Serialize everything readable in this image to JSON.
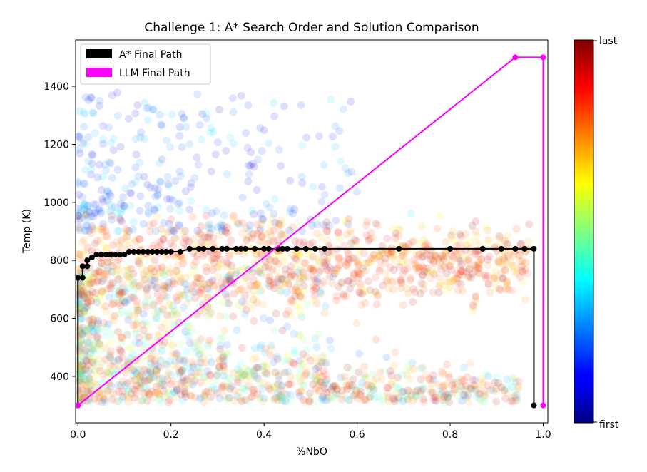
{
  "chart_data": {
    "type": "scatter",
    "title": "Challenge 1: A* Search Order and Solution Comparison",
    "xlabel": "%NbO",
    "ylabel": "Temp (K)",
    "xlim": [
      -0.005,
      1.01
    ],
    "ylim": [
      240,
      1560
    ],
    "xticks": [
      0.0,
      0.2,
      0.4,
      0.6,
      0.8,
      1.0
    ],
    "xtick_labels": [
      "0.0",
      "0.2",
      "0.4",
      "0.6",
      "0.8",
      "1.0"
    ],
    "yticks": [
      400,
      600,
      800,
      1000,
      1200,
      1400
    ],
    "ytick_labels": [
      "400",
      "600",
      "800",
      "1000",
      "1200",
      "1400"
    ],
    "colorbar": {
      "colormap": "jet",
      "label_top": "last",
      "label_bottom": "first"
    },
    "legend": {
      "placement": "top-left",
      "entries": [
        {
          "label": "A* Final Path",
          "color": "#000000"
        },
        {
          "label": "LLM Final Path",
          "color": "#ff00ff"
        }
      ]
    },
    "series": [
      {
        "name": "A* Final Path",
        "color": "#000000",
        "points": [
          [
            0.0,
            300
          ],
          [
            0.0,
            740
          ],
          [
            0.01,
            740
          ],
          [
            0.01,
            780
          ],
          [
            0.02,
            780
          ],
          [
            0.02,
            800
          ],
          [
            0.03,
            810
          ],
          [
            0.04,
            820
          ],
          [
            0.05,
            820
          ],
          [
            0.06,
            820
          ],
          [
            0.07,
            820
          ],
          [
            0.08,
            820
          ],
          [
            0.09,
            820
          ],
          [
            0.1,
            820
          ],
          [
            0.11,
            830
          ],
          [
            0.12,
            830
          ],
          [
            0.13,
            830
          ],
          [
            0.14,
            830
          ],
          [
            0.15,
            830
          ],
          [
            0.16,
            830
          ],
          [
            0.17,
            830
          ],
          [
            0.18,
            830
          ],
          [
            0.19,
            830
          ],
          [
            0.2,
            830
          ],
          [
            0.22,
            830
          ],
          [
            0.24,
            840
          ],
          [
            0.26,
            840
          ],
          [
            0.27,
            840
          ],
          [
            0.29,
            840
          ],
          [
            0.31,
            840
          ],
          [
            0.32,
            840
          ],
          [
            0.34,
            840
          ],
          [
            0.35,
            840
          ],
          [
            0.36,
            840
          ],
          [
            0.38,
            840
          ],
          [
            0.4,
            840
          ],
          [
            0.41,
            840
          ],
          [
            0.43,
            840
          ],
          [
            0.44,
            840
          ],
          [
            0.45,
            840
          ],
          [
            0.47,
            840
          ],
          [
            0.49,
            840
          ],
          [
            0.51,
            840
          ],
          [
            0.53,
            840
          ],
          [
            0.69,
            840
          ],
          [
            0.8,
            840
          ],
          [
            0.87,
            840
          ],
          [
            0.91,
            840
          ],
          [
            0.94,
            840
          ],
          [
            0.96,
            840
          ],
          [
            0.98,
            840
          ],
          [
            0.98,
            300
          ]
        ]
      },
      {
        "name": "LLM Final Path",
        "color": "#ff00ff",
        "points": [
          [
            0.0,
            300
          ],
          [
            0.94,
            1500
          ],
          [
            1.0,
            1500
          ],
          [
            1.0,
            300
          ]
        ]
      }
    ]
  }
}
